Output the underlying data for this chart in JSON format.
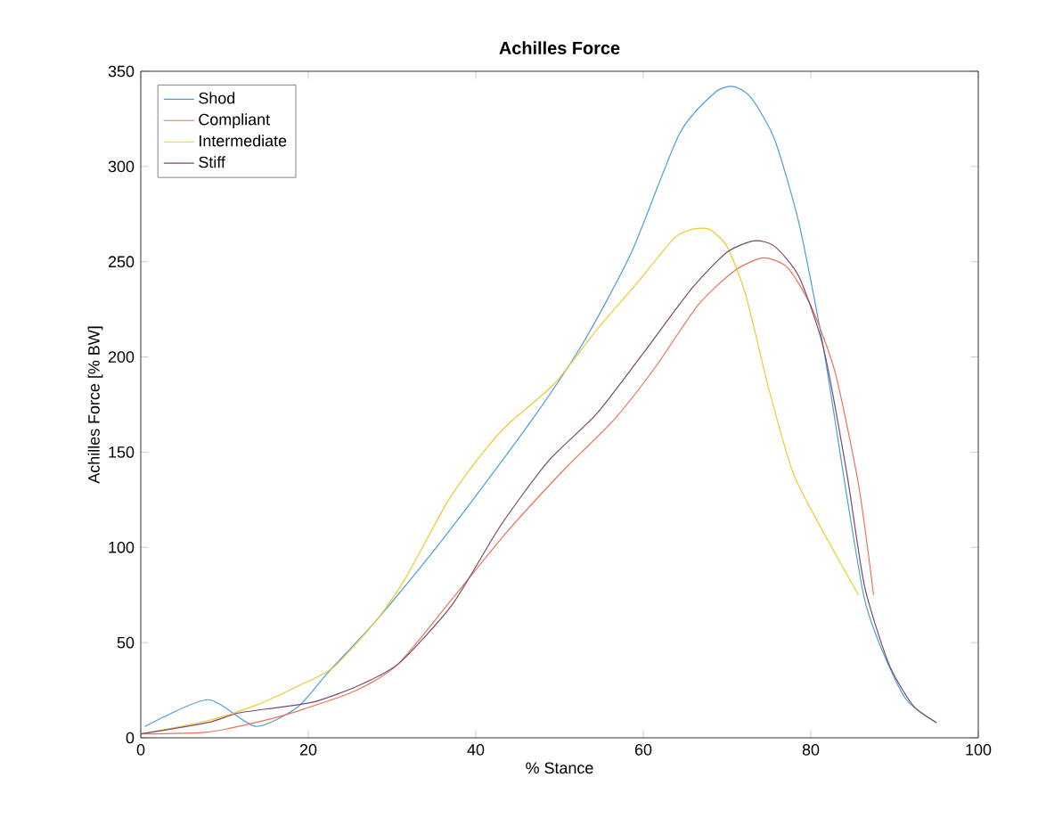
{
  "chart_data": {
    "type": "line",
    "title": "Achilles Force",
    "xlabel": "% Stance",
    "ylabel": "Achilles Force [% BW]",
    "xlim": [
      0,
      100
    ],
    "ylim": [
      0,
      350
    ],
    "xticks": [
      0,
      20,
      40,
      60,
      80,
      100
    ],
    "yticks": [
      0,
      50,
      100,
      150,
      200,
      250,
      300,
      350
    ],
    "grid": false,
    "legend": "top left",
    "marker": "none",
    "line_style": "solid",
    "series": [
      {
        "name": "Shod",
        "color": "#4a9ed8",
        "x": [
          0.5,
          8,
          13.7,
          18.7,
          22.3,
          28,
          34.4,
          40,
          47.2,
          52.9,
          58.6,
          64.3,
          68.6,
          70.8,
          72.9,
          75.7,
          78.6,
          81.5,
          84.3,
          86.4,
          88.6,
          91.4,
          95
        ],
        "values": [
          6,
          20,
          6,
          16,
          34,
          61,
          95,
          127,
          170,
          208,
          255,
          317,
          339,
          342,
          336,
          314,
          270,
          205,
          127,
          73,
          45,
          20,
          8
        ]
      },
      {
        "name": "Compliant",
        "color": "#e8735a",
        "x": [
          0,
          8,
          13.7,
          18.7,
          25.8,
          30.8,
          37.2,
          43.7,
          50.8,
          56.5,
          61.5,
          66.5,
          70.8,
          74.3,
          77.2,
          80,
          82.9,
          85.7,
          87.5
        ],
        "values": [
          2,
          3,
          8,
          14,
          25,
          39,
          73,
          108,
          142,
          167,
          195,
          227,
          245,
          252,
          247,
          227,
          192,
          133,
          75
        ]
      },
      {
        "name": "Intermediate",
        "color": "#f0c830",
        "x": [
          0,
          8,
          13.7,
          18.7,
          23,
          28,
          31.5,
          36.5,
          40,
          43.7,
          49.4,
          54.4,
          59.3,
          63.6,
          65.8,
          67.9,
          70,
          72.2,
          75,
          77.9,
          81.5,
          85.7
        ],
        "values": [
          2,
          9,
          17,
          27,
          37,
          61,
          83,
          123,
          145,
          164,
          186,
          214,
          239,
          262,
          267,
          267,
          258,
          233,
          183,
          139,
          108,
          75
        ]
      },
      {
        "name": "Stiff",
        "color": "#7a4a6a",
        "x": [
          0,
          8,
          11.6,
          16.5,
          20.8,
          25.8,
          30.8,
          37.2,
          42.9,
          48.6,
          54.4,
          60,
          65.8,
          70,
          73.3,
          75.7,
          78.6,
          81.5,
          84.3,
          86.4,
          89.3,
          92.2,
          95
        ],
        "values": [
          2,
          8,
          13,
          16,
          19,
          27,
          39,
          70,
          111,
          145,
          170,
          202,
          236,
          255,
          261,
          258,
          242,
          205,
          139,
          80,
          39,
          17,
          8
        ]
      }
    ]
  }
}
